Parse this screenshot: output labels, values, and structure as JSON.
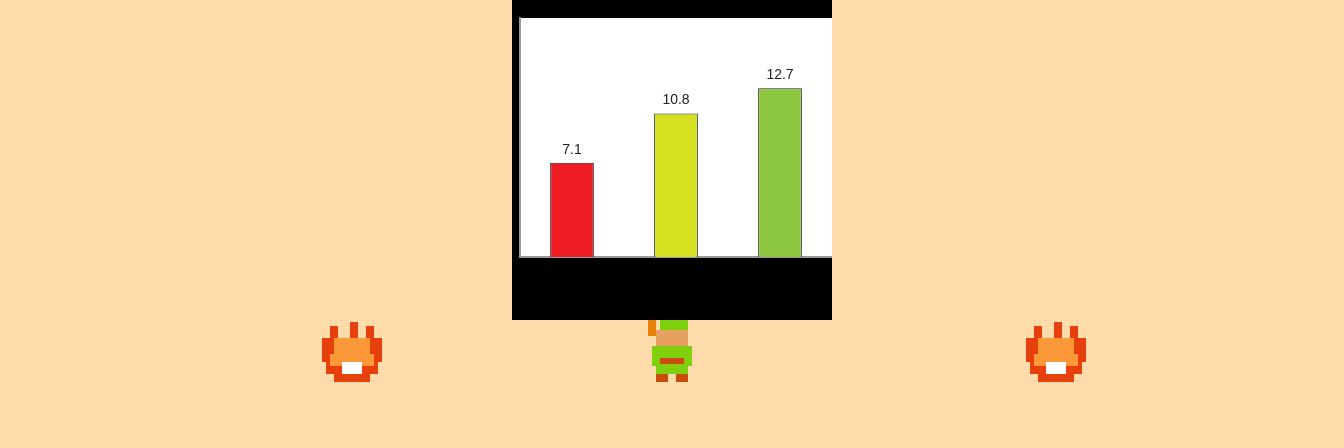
{
  "chart_data": {
    "type": "bar",
    "categories": [
      null,
      null,
      null
    ],
    "values": [
      7.1,
      10.8,
      12.7
    ],
    "colors": [
      "#ed1c24",
      "#d4e020",
      "#8dc63f"
    ],
    "ylim": [
      0,
      18
    ],
    "grid": false,
    "data_labels": true,
    "tick_labels": false
  }
}
